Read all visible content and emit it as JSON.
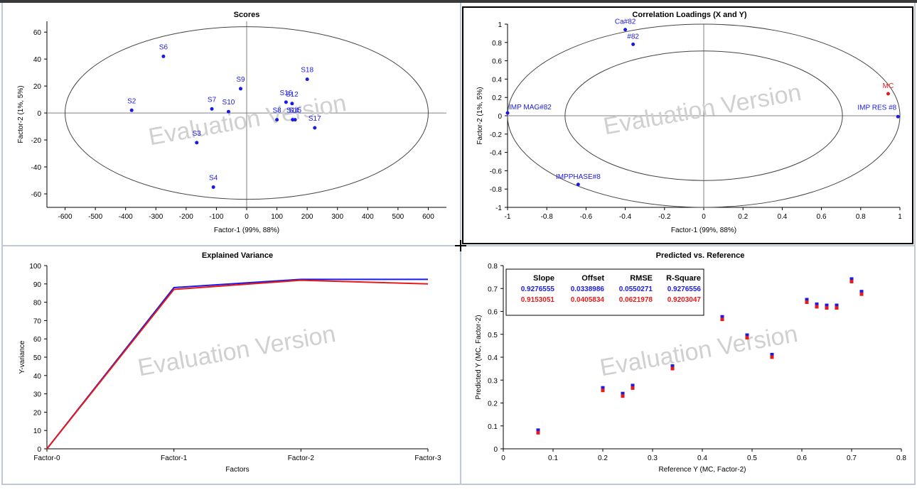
{
  "watermark": "Evaluation Version",
  "colors": {
    "blue": "#1a1ae6",
    "red": "#e61a1a",
    "axis": "#000000",
    "grid": "#808080",
    "frame": "#c0c8d8"
  },
  "chart_data": [
    {
      "id": "scores",
      "type": "scatter",
      "title": "Scores",
      "xlabel": "Factor-1 (99%, 88%)",
      "ylabel": "Factor-2 (1%, 5%)",
      "xlim": [
        -660,
        660
      ],
      "ylim": [
        -70,
        68
      ],
      "xticks": [
        -600,
        -500,
        -400,
        -300,
        -200,
        -100,
        0,
        100,
        200,
        300,
        400,
        500,
        600
      ],
      "yticks": [
        -60,
        -40,
        -20,
        0,
        20,
        40,
        60
      ],
      "ellipse": {
        "rx": 600,
        "ry": 64
      },
      "points": [
        {
          "label": "S6",
          "x": -275,
          "y": 42
        },
        {
          "label": "S2",
          "x": -380,
          "y": 2
        },
        {
          "label": "S7",
          "x": -115,
          "y": 3
        },
        {
          "label": "S10",
          "x": -60,
          "y": 1
        },
        {
          "label": "S9",
          "x": -20,
          "y": 18
        },
        {
          "label": "S3",
          "x": -165,
          "y": -22
        },
        {
          "label": "S4",
          "x": -110,
          "y": -55
        },
        {
          "label": "S8",
          "x": 100,
          "y": -5
        },
        {
          "label": "S16",
          "x": 130,
          "y": 8
        },
        {
          "label": "S12",
          "x": 150,
          "y": 7
        },
        {
          "label": "S14",
          "x": 152,
          "y": -5
        },
        {
          "label": "S15",
          "x": 160,
          "y": -5
        },
        {
          "label": "S18",
          "x": 200,
          "y": 25
        },
        {
          "label": "S17",
          "x": 225,
          "y": -11
        }
      ]
    },
    {
      "id": "loadings",
      "type": "scatter",
      "title": "Correlation Loadings (X and Y)",
      "xlabel": "Factor-1 (99%, 88%)",
      "ylabel": "Factor-2 (1%, 5%)",
      "xlim": [
        -1,
        1
      ],
      "ylim": [
        -1,
        1
      ],
      "xticks": [
        -1,
        -0.8,
        -0.6,
        -0.4,
        -0.2,
        0,
        0.2,
        0.4,
        0.6,
        0.8,
        1
      ],
      "yticks": [
        -1,
        -0.8,
        -0.6,
        -0.4,
        -0.2,
        0,
        0.2,
        0.4,
        0.6,
        0.8,
        1
      ],
      "circles": [
        1,
        0.707
      ],
      "points": [
        {
          "label": "IMP MAG#82",
          "x": -1,
          "y": 0.03,
          "color": "blue"
        },
        {
          "label": "IMPPHASE#8",
          "x": -0.64,
          "y": -0.75,
          "color": "blue"
        },
        {
          "label": "Ca#82",
          "x": -0.4,
          "y": 0.94,
          "color": "blue"
        },
        {
          "label": "#82",
          "x": -0.36,
          "y": 0.78,
          "color": "blue"
        },
        {
          "label": "IMP RES #8",
          "x": 0.99,
          "y": -0.01,
          "color": "blue"
        },
        {
          "label": "MC",
          "x": 0.94,
          "y": 0.24,
          "color": "red"
        }
      ]
    },
    {
      "id": "variance",
      "type": "line",
      "title": "Explained Variance",
      "xlabel": "Factors",
      "ylabel": "Y-variance",
      "categories": [
        "Factor-0",
        "Factor-1",
        "Factor-2",
        "Factor-3"
      ],
      "ylim": [
        0,
        100
      ],
      "yticks": [
        0,
        10,
        20,
        30,
        40,
        50,
        60,
        70,
        80,
        90,
        100
      ],
      "series": [
        {
          "color": "blue",
          "values": [
            0,
            88,
            92.5,
            92.5
          ]
        },
        {
          "color": "red",
          "values": [
            0,
            87,
            92,
            90
          ]
        }
      ]
    },
    {
      "id": "predicted",
      "type": "scatter",
      "title": "Predicted vs. Reference",
      "xlabel": "Reference Y (MC, Factor-2)",
      "ylabel": "Predicted Y (MC, Factor-2)",
      "xlim": [
        0,
        0.8
      ],
      "ylim": [
        0,
        0.8
      ],
      "xticks": [
        0,
        0.1,
        0.2,
        0.3,
        0.4,
        0.5,
        0.6,
        0.7,
        0.8
      ],
      "yticks": [
        0,
        0.1,
        0.2,
        0.3,
        0.4,
        0.5,
        0.6,
        0.7,
        0.8
      ],
      "stats": {
        "headers": [
          "Slope",
          "Offset",
          "RMSE",
          "R-Square"
        ],
        "rows": [
          {
            "color": "blue",
            "values": [
              "0.9276555",
              "0.0338986",
              "0.0550271",
              "0.9276556"
            ]
          },
          {
            "color": "red",
            "values": [
              "0.9153051",
              "0.0405834",
              "0.0621978",
              "0.9203047"
            ]
          }
        ]
      },
      "points": [
        {
          "x": 0.07,
          "y": 0.075
        },
        {
          "x": 0.2,
          "y": 0.26
        },
        {
          "x": 0.24,
          "y": 0.235
        },
        {
          "x": 0.26,
          "y": 0.27
        },
        {
          "x": 0.34,
          "y": 0.355
        },
        {
          "x": 0.44,
          "y": 0.57
        },
        {
          "x": 0.49,
          "y": 0.49
        },
        {
          "x": 0.54,
          "y": 0.405
        },
        {
          "x": 0.61,
          "y": 0.645
        },
        {
          "x": 0.63,
          "y": 0.625
        },
        {
          "x": 0.65,
          "y": 0.62
        },
        {
          "x": 0.67,
          "y": 0.62
        },
        {
          "x": 0.7,
          "y": 0.735
        },
        {
          "x": 0.72,
          "y": 0.68
        }
      ]
    }
  ]
}
